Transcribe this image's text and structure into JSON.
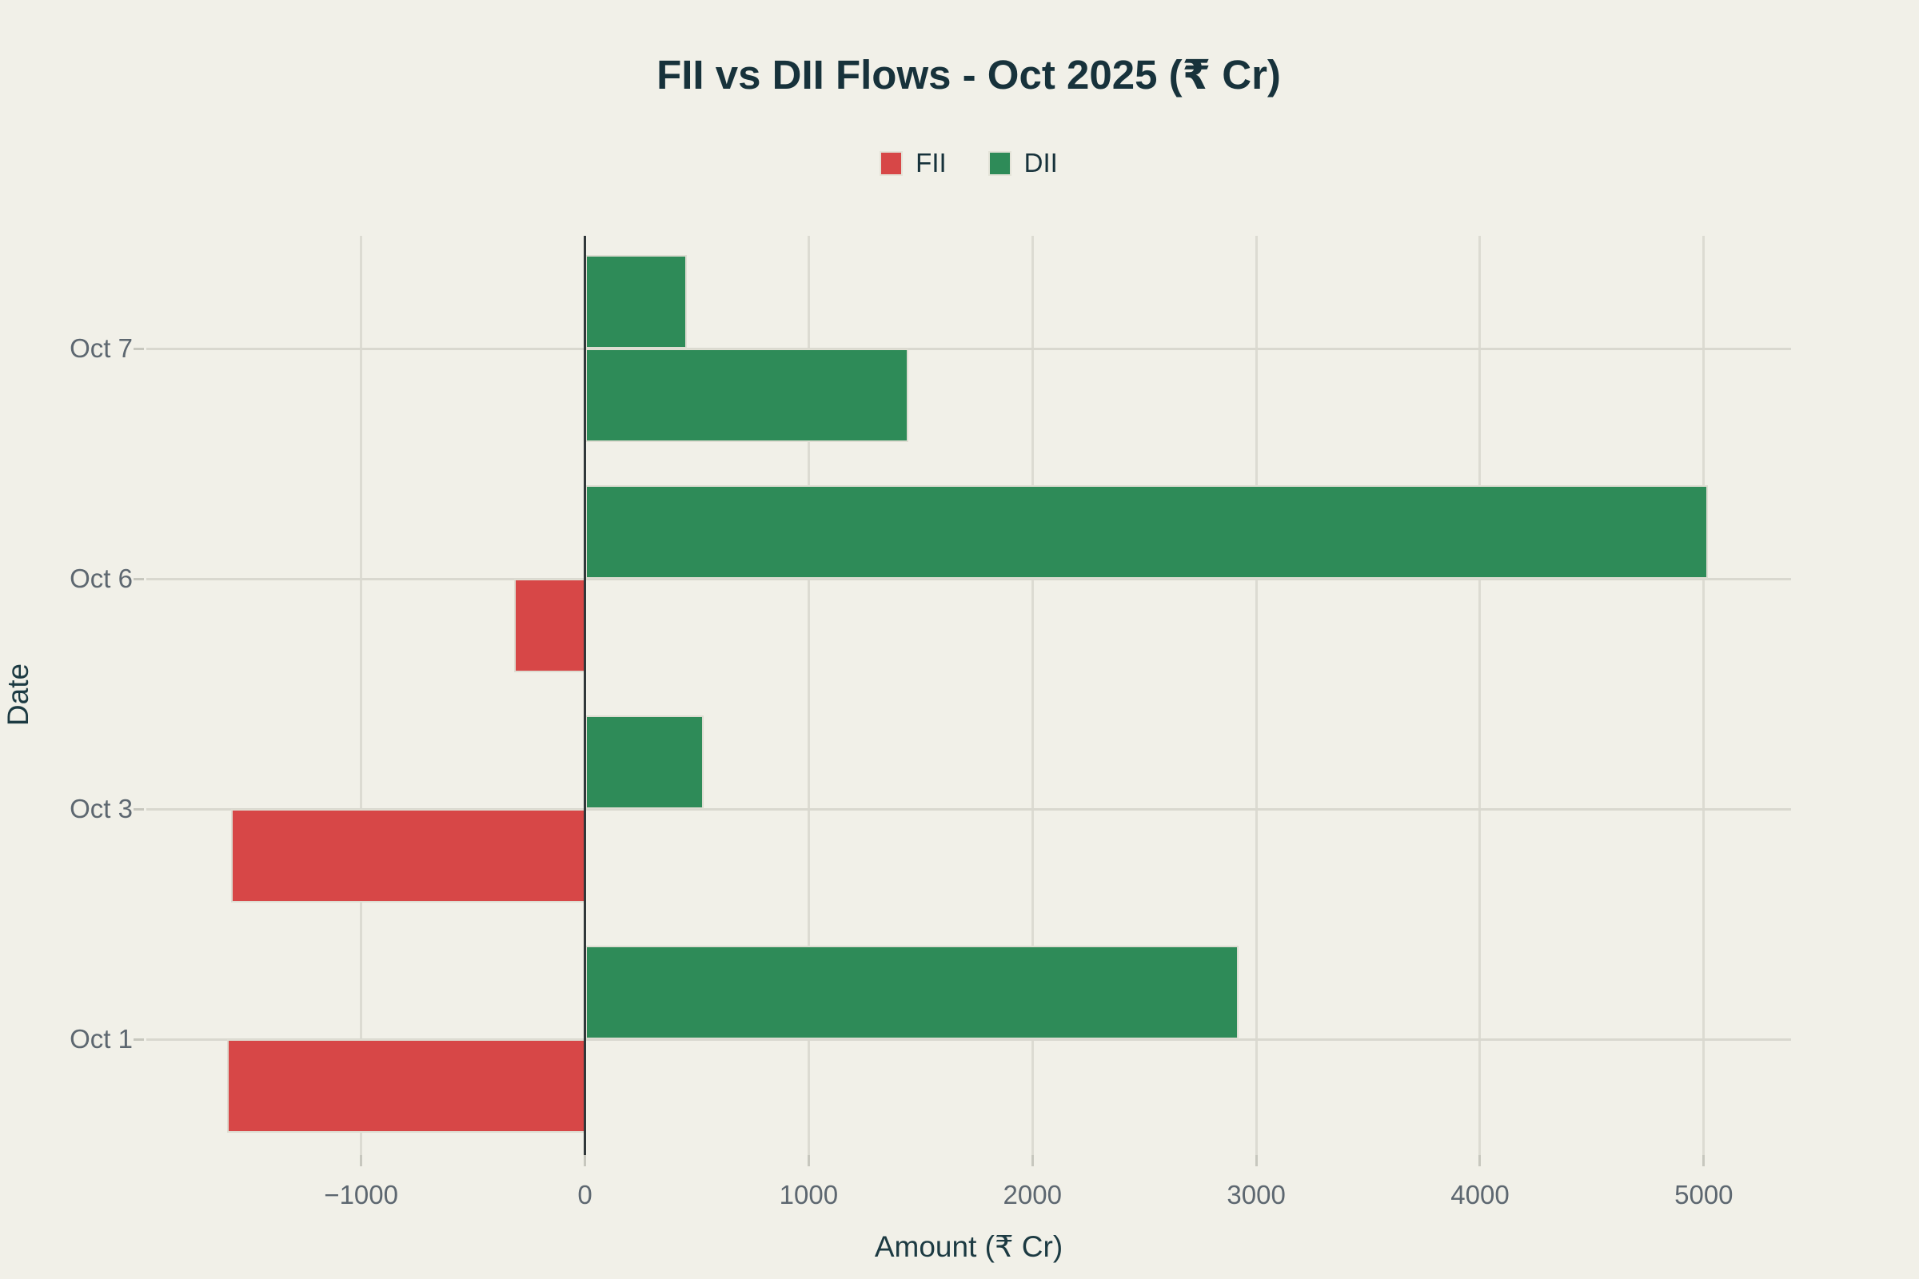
{
  "page": {
    "background_color": "#f1f0e8"
  },
  "header": {
    "title": "FII vs DII Flows - Oct 2025 (₹ Cr)"
  },
  "legend": {
    "items": [
      {
        "label": "FII",
        "color": "#d74747"
      },
      {
        "label": "DII",
        "color": "#2e8b58"
      }
    ]
  },
  "axes": {
    "x": {
      "label": "Amount (₹ Cr)",
      "tick_labels": [
        "−1000",
        "0",
        "1000",
        "2000",
        "3000",
        "4000",
        "5000"
      ]
    },
    "y": {
      "label": "Date",
      "tick_labels": [
        "Oct 7",
        "Oct 6",
        "Oct 3",
        "Oct 1"
      ]
    }
  },
  "chart_data": {
    "type": "bar",
    "orientation": "horizontal",
    "title": "FII vs DII Flows - Oct 2025 (₹ Cr)",
    "xlabel": "Amount (₹ Cr)",
    "ylabel": "Date",
    "categories": [
      "Oct 7",
      "Oct 6",
      "Oct 3",
      "Oct 1"
    ],
    "categories_order": "top-to-bottom",
    "series": [
      {
        "name": "DII",
        "position_in_group": "top",
        "values": [
          455,
          5020,
          530,
          2920
        ]
      },
      {
        "name": "FII",
        "position_in_group": "bottom",
        "values": [
          1445,
          -315,
          -1580,
          -1600
        ]
      }
    ],
    "xlim": [
      -1960,
      5390
    ],
    "xticks": [
      -1000,
      0,
      1000,
      2000,
      3000,
      4000,
      5000
    ],
    "grid": true,
    "legend_position": "top-center",
    "bar_coloring": "by-sign",
    "positive_color": "#2e8b58",
    "negative_color": "#d74747",
    "gridline_color": "#dcdbd2",
    "zero_line_color": "#31383a",
    "tick_label_color": "#5d6770",
    "axis_label_color": "#1c3a42",
    "title_color": "#17323b"
  }
}
